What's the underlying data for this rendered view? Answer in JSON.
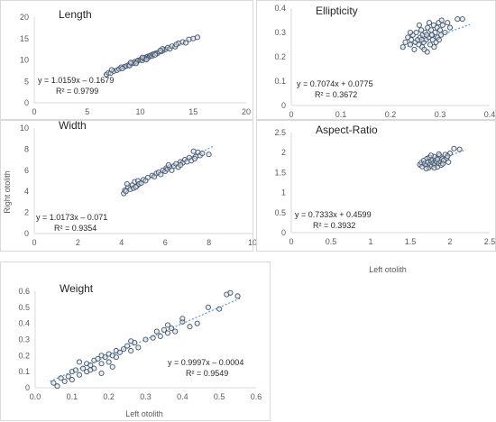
{
  "labels": {
    "ylabel": "Right otolith",
    "xlabel_right": "Left otolith",
    "xlabel_bottom": "Left otolith"
  },
  "colors": {
    "marker": "#44546a",
    "marker_fill": "#d9e1ea",
    "trend": "#5b9bd5",
    "axis": "#d9d9d9",
    "text": "#595959"
  },
  "chart_data": [
    {
      "type": "scatter",
      "title": "Length",
      "xlim": [
        0,
        20
      ],
      "ylim": [
        0,
        20
      ],
      "xticks": [
        "0",
        "5",
        "10",
        "15",
        "20"
      ],
      "yticks": [
        "0",
        "5",
        "10",
        "15",
        "20"
      ],
      "eq": "y = 1.0159x – 0.1679",
      "r2": "R² = 0.9799",
      "trend": {
        "slope": 1.0159,
        "intercept": -0.1679,
        "x0": 6.6,
        "x1": 15.6
      },
      "points": [
        [
          6.8,
          6.6
        ],
        [
          7.0,
          7.0
        ],
        [
          7.2,
          6.9
        ],
        [
          7.5,
          7.4
        ],
        [
          7.8,
          7.6
        ],
        [
          8.0,
          7.9
        ],
        [
          8.2,
          8.3
        ],
        [
          8.5,
          8.4
        ],
        [
          8.7,
          8.6
        ],
        [
          8.9,
          8.8
        ],
        [
          9.0,
          8.7
        ],
        [
          9.2,
          9.2
        ],
        [
          9.4,
          9.3
        ],
        [
          9.5,
          9.6
        ],
        [
          9.7,
          9.6
        ],
        [
          9.8,
          9.9
        ],
        [
          10.0,
          10.0
        ],
        [
          10.1,
          10.2
        ],
        [
          10.2,
          9.9
        ],
        [
          10.3,
          10.4
        ],
        [
          10.4,
          10.5
        ],
        [
          10.5,
          10.2
        ],
        [
          10.6,
          10.7
        ],
        [
          10.7,
          10.8
        ],
        [
          10.8,
          10.6
        ],
        [
          10.9,
          11.0
        ],
        [
          11.0,
          11.1
        ],
        [
          11.1,
          10.9
        ],
        [
          11.2,
          11.3
        ],
        [
          11.3,
          11.4
        ],
        [
          11.5,
          11.6
        ],
        [
          11.6,
          11.5
        ],
        [
          11.8,
          11.9
        ],
        [
          12.0,
          12.0
        ],
        [
          12.2,
          12.3
        ],
        [
          12.4,
          12.5
        ],
        [
          12.6,
          12.9
        ],
        [
          12.8,
          12.6
        ],
        [
          13.0,
          13.2
        ],
        [
          13.3,
          13.1
        ],
        [
          13.6,
          13.9
        ],
        [
          14.0,
          14.2
        ],
        [
          14.3,
          14.0
        ],
        [
          14.6,
          14.8
        ],
        [
          15.0,
          15.0
        ],
        [
          15.4,
          15.3
        ],
        [
          8.3,
          8.0
        ],
        [
          9.1,
          9.4
        ],
        [
          10.2,
          10.6
        ],
        [
          11.4,
          11.2
        ],
        [
          12.1,
          12.6
        ],
        [
          10.6,
          10.1
        ],
        [
          9.6,
          9.2
        ],
        [
          7.3,
          7.7
        ],
        [
          11.9,
          12.2
        ],
        [
          13.4,
          13.6
        ]
      ]
    },
    {
      "type": "scatter",
      "title": "Ellipticity",
      "xlim": [
        0,
        0.4
      ],
      "ylim": [
        0,
        0.4
      ],
      "xticks": [
        "0",
        "0.1",
        "0.2",
        "0.3",
        "0.4"
      ],
      "yticks": [
        "0",
        "0.1",
        "0.2",
        "0.3",
        "0.4"
      ],
      "eq": "y = 0.7074x + 0.0775",
      "r2": "R² = 0.3672",
      "trend": {
        "slope": 0.7074,
        "intercept": 0.0775,
        "x0": 0.22,
        "x1": 0.36
      },
      "points": [
        [
          0.225,
          0.24
        ],
        [
          0.23,
          0.26
        ],
        [
          0.235,
          0.28
        ],
        [
          0.24,
          0.25
        ],
        [
          0.242,
          0.27
        ],
        [
          0.245,
          0.29
        ],
        [
          0.248,
          0.23
        ],
        [
          0.25,
          0.26
        ],
        [
          0.252,
          0.3
        ],
        [
          0.255,
          0.27
        ],
        [
          0.257,
          0.25
        ],
        [
          0.26,
          0.28
        ],
        [
          0.262,
          0.31
        ],
        [
          0.264,
          0.24
        ],
        [
          0.265,
          0.29
        ],
        [
          0.267,
          0.26
        ],
        [
          0.27,
          0.3
        ],
        [
          0.272,
          0.27
        ],
        [
          0.274,
          0.22
        ],
        [
          0.275,
          0.32
        ],
        [
          0.277,
          0.28
        ],
        [
          0.28,
          0.25
        ],
        [
          0.282,
          0.31
        ],
        [
          0.284,
          0.29
        ],
        [
          0.285,
          0.27
        ],
        [
          0.287,
          0.33
        ],
        [
          0.29,
          0.3
        ],
        [
          0.292,
          0.26
        ],
        [
          0.294,
          0.32
        ],
        [
          0.295,
          0.28
        ],
        [
          0.297,
          0.34
        ],
        [
          0.3,
          0.31
        ],
        [
          0.302,
          0.29
        ],
        [
          0.305,
          0.33
        ],
        [
          0.31,
          0.3
        ],
        [
          0.315,
          0.34
        ],
        [
          0.32,
          0.32
        ],
        [
          0.335,
          0.355
        ],
        [
          0.345,
          0.355
        ],
        [
          0.258,
          0.33
        ],
        [
          0.268,
          0.23
        ],
        [
          0.278,
          0.34
        ],
        [
          0.288,
          0.24
        ],
        [
          0.298,
          0.27
        ],
        [
          0.24,
          0.3
        ],
        [
          0.263,
          0.27
        ],
        [
          0.283,
          0.29
        ],
        [
          0.303,
          0.35
        ],
        [
          0.273,
          0.29
        ]
      ]
    },
    {
      "type": "scatter",
      "title": "Width",
      "xlim": [
        0,
        10
      ],
      "ylim": [
        0,
        10
      ],
      "xticks": [
        "0",
        "2",
        "4",
        "6",
        "8",
        "10"
      ],
      "yticks": [
        "0",
        "2",
        "4",
        "6",
        "8",
        "10"
      ],
      "eq": "y = 1.0173x – 0.071",
      "r2": "R² = 0.9354",
      "trend": {
        "slope": 1.0173,
        "intercept": -0.071,
        "x0": 4.1,
        "x1": 8.2
      },
      "points": [
        [
          4.1,
          3.8
        ],
        [
          4.15,
          4.1
        ],
        [
          4.2,
          4.0
        ],
        [
          4.3,
          4.4
        ],
        [
          4.4,
          4.2
        ],
        [
          4.5,
          4.6
        ],
        [
          4.55,
          4.3
        ],
        [
          4.6,
          4.9
        ],
        [
          4.7,
          4.5
        ],
        [
          4.75,
          5.0
        ],
        [
          4.8,
          4.7
        ],
        [
          4.9,
          4.8
        ],
        [
          5.0,
          5.1
        ],
        [
          5.2,
          5.3
        ],
        [
          5.4,
          5.5
        ],
        [
          5.5,
          5.4
        ],
        [
          5.6,
          5.7
        ],
        [
          5.7,
          5.8
        ],
        [
          5.8,
          5.6
        ],
        [
          5.9,
          6.0
        ],
        [
          6.0,
          5.9
        ],
        [
          6.05,
          6.2
        ],
        [
          6.1,
          6.1
        ],
        [
          6.2,
          6.3
        ],
        [
          6.3,
          6.0
        ],
        [
          6.4,
          6.4
        ],
        [
          6.5,
          6.6
        ],
        [
          6.6,
          6.3
        ],
        [
          6.7,
          6.8
        ],
        [
          6.8,
          6.7
        ],
        [
          6.9,
          7.0
        ],
        [
          7.0,
          6.8
        ],
        [
          7.1,
          7.2
        ],
        [
          7.2,
          6.9
        ],
        [
          7.3,
          7.8
        ],
        [
          7.4,
          7.3
        ],
        [
          7.5,
          7.7
        ],
        [
          7.6,
          7.4
        ],
        [
          7.7,
          7.6
        ],
        [
          8.0,
          7.5
        ],
        [
          4.25,
          4.7
        ],
        [
          4.65,
          4.4
        ],
        [
          5.1,
          5.0
        ],
        [
          6.15,
          6.5
        ],
        [
          6.7,
          6.5
        ],
        [
          7.35,
          7.1
        ]
      ]
    },
    {
      "type": "scatter",
      "title": "Aspect-Ratio",
      "xlim": [
        0,
        2.5
      ],
      "ylim": [
        0,
        2.5
      ],
      "xticks": [
        "0",
        "0.5",
        "1",
        "1.5",
        "2",
        "2.5"
      ],
      "yticks": [
        "0",
        "0.5",
        "1",
        "1.5",
        "2",
        "2.5"
      ],
      "eq": "y = 0.7333x + 0.4599",
      "r2": "R² = 0.3932",
      "trend": {
        "slope": 0.7333,
        "intercept": 0.4599,
        "x0": 1.6,
        "x1": 2.2
      },
      "points": [
        [
          1.62,
          1.7
        ],
        [
          1.64,
          1.75
        ],
        [
          1.65,
          1.65
        ],
        [
          1.67,
          1.8
        ],
        [
          1.68,
          1.72
        ],
        [
          1.7,
          1.68
        ],
        [
          1.71,
          1.85
        ],
        [
          1.72,
          1.76
        ],
        [
          1.73,
          1.62
        ],
        [
          1.74,
          1.88
        ],
        [
          1.75,
          1.71
        ],
        [
          1.76,
          1.79
        ],
        [
          1.77,
          1.66
        ],
        [
          1.78,
          1.83
        ],
        [
          1.79,
          1.74
        ],
        [
          1.8,
          1.9
        ],
        [
          1.81,
          1.7
        ],
        [
          1.82,
          1.81
        ],
        [
          1.83,
          1.77
        ],
        [
          1.84,
          1.64
        ],
        [
          1.85,
          1.86
        ],
        [
          1.86,
          1.73
        ],
        [
          1.87,
          1.92
        ],
        [
          1.88,
          1.78
        ],
        [
          1.89,
          1.69
        ],
        [
          1.9,
          1.84
        ],
        [
          1.92,
          1.8
        ],
        [
          1.94,
          1.95
        ],
        [
          1.96,
          1.87
        ],
        [
          1.98,
          1.76
        ],
        [
          2.0,
          1.98
        ],
        [
          2.05,
          2.1
        ],
        [
          2.12,
          2.08
        ],
        [
          1.8,
          1.62
        ],
        [
          1.86,
          1.96
        ],
        [
          1.76,
          1.93
        ],
        [
          1.7,
          1.6
        ],
        [
          1.91,
          1.72
        ],
        [
          1.97,
          1.91
        ],
        [
          1.84,
          1.83
        ]
      ]
    },
    {
      "type": "scatter",
      "title": "Weight",
      "xlim": [
        0,
        0.6
      ],
      "ylim": [
        0,
        0.6
      ],
      "xticks": [
        "0.0",
        "0.1",
        "0.2",
        "0.3",
        "0.4",
        "0.5",
        "0.6"
      ],
      "yticks": [
        "0",
        "0.1",
        "0.2",
        "0.3",
        "0.4",
        "0.5",
        "0.6"
      ],
      "eq": "y = 0.9997x – 0.0004",
      "r2": "R² = 0.9549",
      "trend": {
        "slope": 0.9997,
        "intercept": -0.0004,
        "x0": 0.04,
        "x1": 0.56
      },
      "points": [
        [
          0.05,
          0.03
        ],
        [
          0.06,
          0.01
        ],
        [
          0.07,
          0.06
        ],
        [
          0.08,
          0.04
        ],
        [
          0.09,
          0.07
        ],
        [
          0.1,
          0.1
        ],
        [
          0.1,
          0.05
        ],
        [
          0.11,
          0.11
        ],
        [
          0.12,
          0.08
        ],
        [
          0.12,
          0.16
        ],
        [
          0.13,
          0.12
        ],
        [
          0.14,
          0.1
        ],
        [
          0.14,
          0.15
        ],
        [
          0.15,
          0.14
        ],
        [
          0.16,
          0.17
        ],
        [
          0.16,
          0.12
        ],
        [
          0.17,
          0.18
        ],
        [
          0.18,
          0.15
        ],
        [
          0.18,
          0.2
        ],
        [
          0.19,
          0.19
        ],
        [
          0.2,
          0.21
        ],
        [
          0.2,
          0.16
        ],
        [
          0.21,
          0.2
        ],
        [
          0.22,
          0.23
        ],
        [
          0.22,
          0.19
        ],
        [
          0.23,
          0.22
        ],
        [
          0.24,
          0.24
        ],
        [
          0.25,
          0.26
        ],
        [
          0.26,
          0.23
        ],
        [
          0.27,
          0.28
        ],
        [
          0.28,
          0.25
        ],
        [
          0.3,
          0.3
        ],
        [
          0.32,
          0.31
        ],
        [
          0.34,
          0.32
        ],
        [
          0.35,
          0.36
        ],
        [
          0.36,
          0.34
        ],
        [
          0.37,
          0.37
        ],
        [
          0.38,
          0.35
        ],
        [
          0.4,
          0.41
        ],
        [
          0.42,
          0.38
        ],
        [
          0.44,
          0.4
        ],
        [
          0.47,
          0.5
        ],
        [
          0.5,
          0.49
        ],
        [
          0.52,
          0.58
        ],
        [
          0.53,
          0.59
        ],
        [
          0.55,
          0.57
        ],
        [
          0.21,
          0.13
        ],
        [
          0.18,
          0.09
        ],
        [
          0.33,
          0.35
        ],
        [
          0.4,
          0.43
        ],
        [
          0.26,
          0.29
        ],
        [
          0.15,
          0.11
        ],
        [
          0.36,
          0.39
        ]
      ]
    }
  ]
}
